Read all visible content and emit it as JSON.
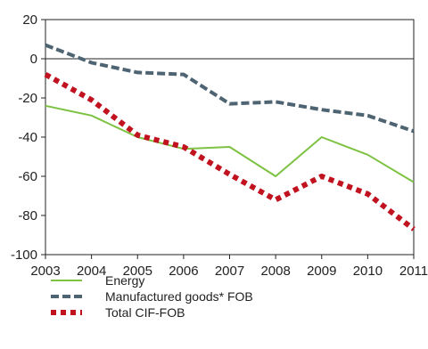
{
  "chart_data": {
    "type": "line",
    "title": "",
    "xlabel": "",
    "ylabel": "",
    "x": [
      "2003",
      "2004",
      "2005",
      "2006",
      "2007",
      "2008",
      "2009",
      "2010",
      "2011"
    ],
    "ylim": [
      -100,
      20
    ],
    "yticks": [
      20,
      0,
      -20,
      -40,
      -60,
      -80,
      -100
    ],
    "grid": false,
    "zero_line": true,
    "legend_position": "bottom-left",
    "series": [
      {
        "name": "Energy",
        "values": [
          -24,
          -29,
          -40,
          -46,
          -45,
          -60,
          -40,
          -49,
          -63
        ],
        "color": "#7dc242",
        "style": "solid"
      },
      {
        "name": "Manufactured goods* FOB",
        "values": [
          7,
          -2,
          -7,
          -8,
          -23,
          -22,
          -26,
          -29,
          -37
        ],
        "color": "#4e6472",
        "style": "dashed"
      },
      {
        "name": "Total CIF-FOB",
        "values": [
          -8,
          -21,
          -39,
          -45,
          -59,
          -72,
          -60,
          -69,
          -87
        ],
        "color": "#c1121f",
        "style": "dotted"
      }
    ]
  }
}
